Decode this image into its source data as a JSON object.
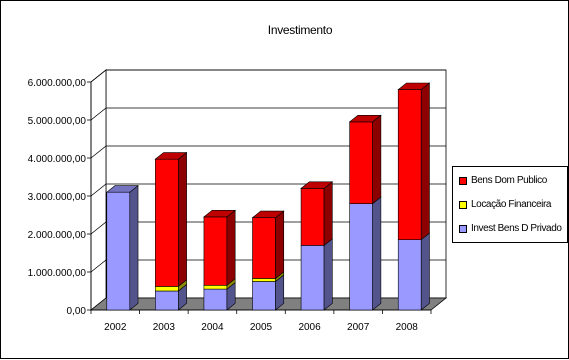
{
  "chart_data": {
    "type": "bar",
    "stacked": true,
    "three_d": true,
    "title": "Investimento",
    "categories": [
      "2002",
      "2003",
      "2004",
      "2005",
      "2006",
      "2007",
      "2008"
    ],
    "ylim": [
      0,
      6000000
    ],
    "y_ticks": [
      "0,00",
      "1.000.000,00",
      "2.000.000,00",
      "3.000.000,00",
      "4.000.000,00",
      "5.000.000,00",
      "6.000.000,00"
    ],
    "grid": true,
    "legend_position": "right",
    "series": [
      {
        "name": "Invest Bens D Privado",
        "color": "#9999ff",
        "values": [
          3100000,
          500000,
          550000,
          750000,
          1700000,
          2800000,
          1850000
        ]
      },
      {
        "name": "Locação Financeira",
        "color": "#ffff00",
        "values": [
          0,
          120000,
          100000,
          80000,
          0,
          0,
          0
        ]
      },
      {
        "name": "Bens Dom Publico",
        "color": "#ff0000",
        "values": [
          0,
          3350000,
          1800000,
          1600000,
          1500000,
          2150000,
          3950000
        ]
      }
    ]
  }
}
